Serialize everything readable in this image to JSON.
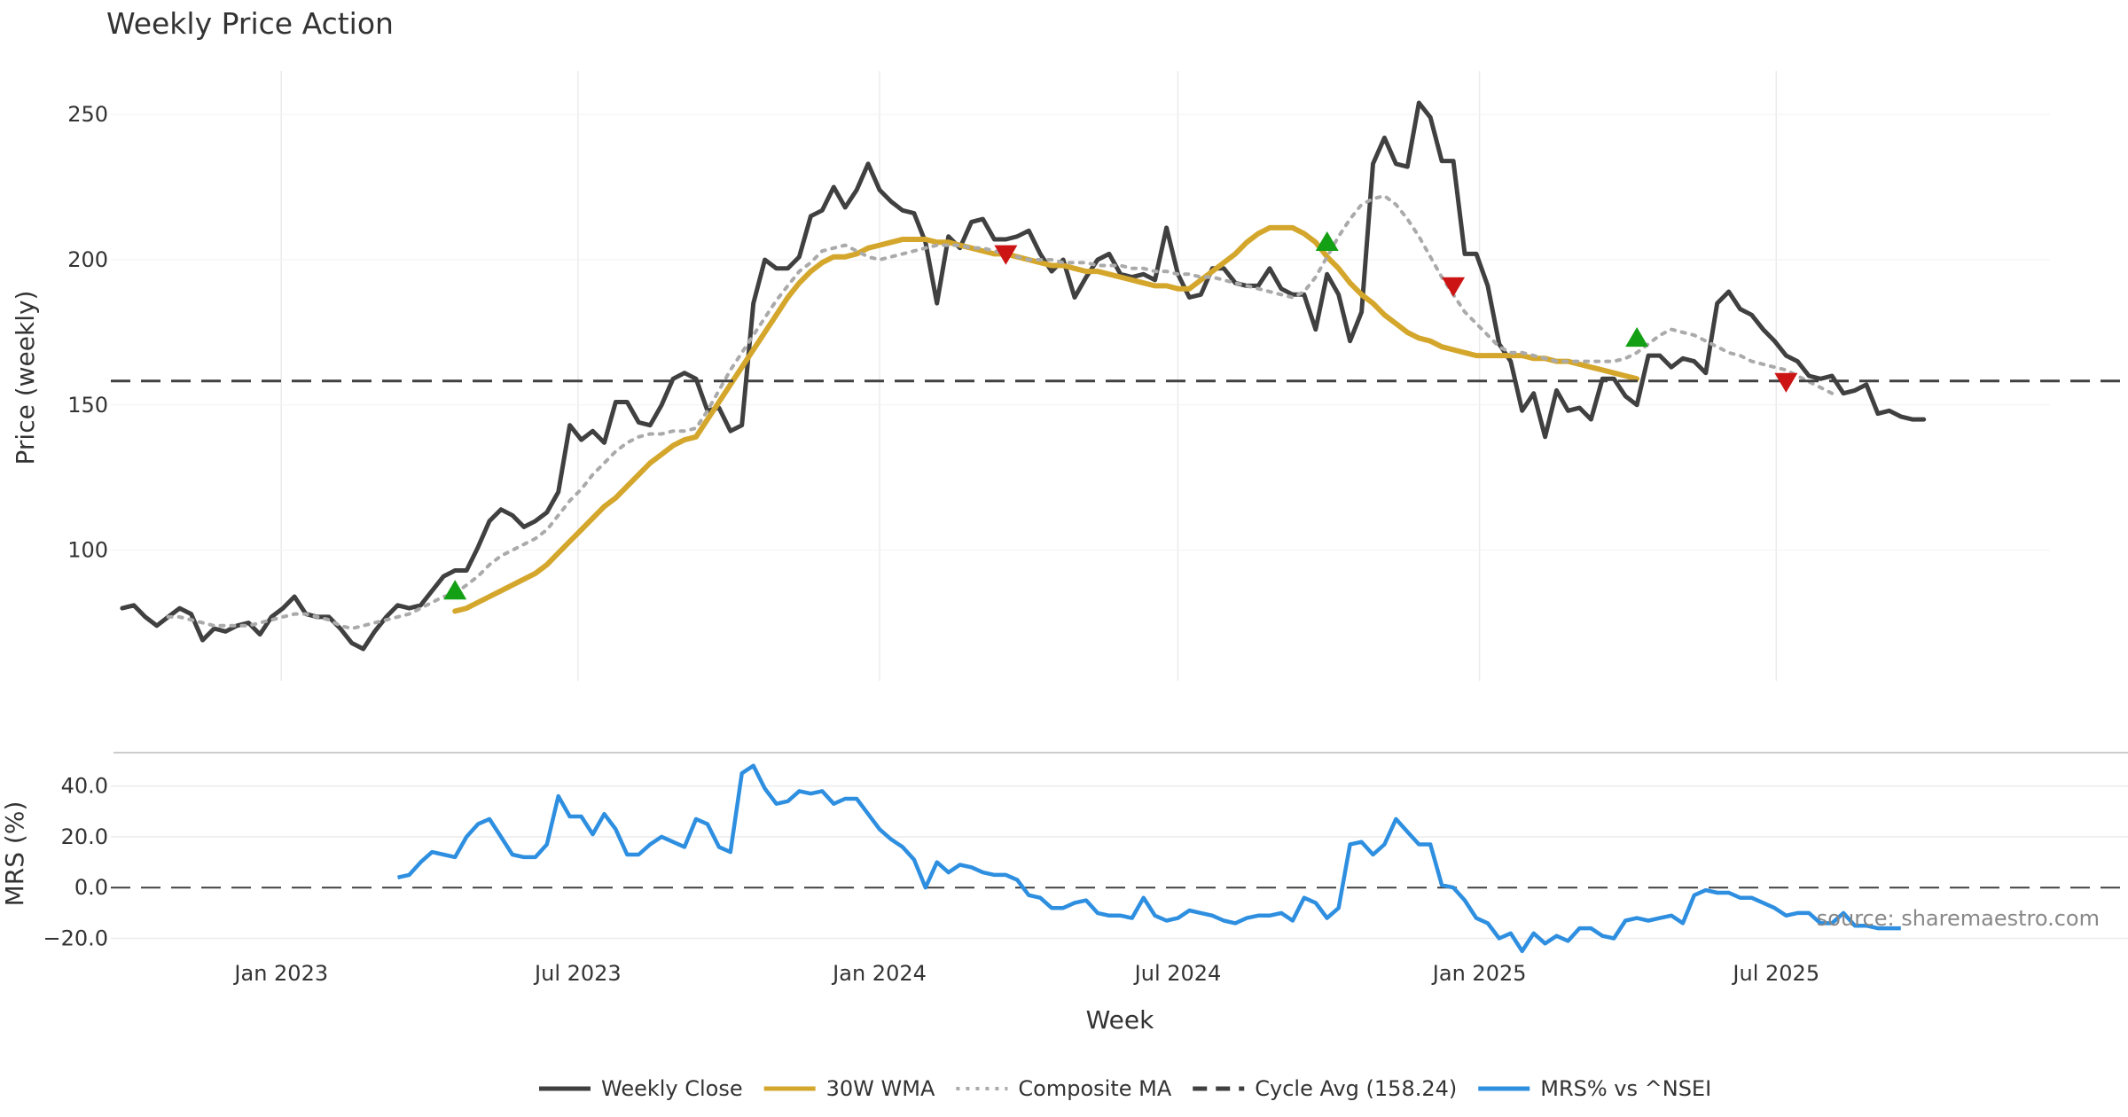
{
  "chart_data": {
    "type": "line",
    "title": "Weekly Price Action",
    "xlabel": "Week",
    "xlim": [
      "2022-09-19",
      "2025-12-15"
    ],
    "x_ticks": [
      {
        "date": "2023-01-01",
        "label": "Jan 2023"
      },
      {
        "date": "2023-07-01",
        "label": "Jul 2023"
      },
      {
        "date": "2024-01-01",
        "label": "Jan 2024"
      },
      {
        "date": "2024-07-01",
        "label": "Jul 2024"
      },
      {
        "date": "2025-01-01",
        "label": "Jan 2025"
      },
      {
        "date": "2025-07-01",
        "label": "Jul 2025"
      }
    ],
    "x_start": "2022-09-26",
    "weeks_per_point": 1,
    "price_panel": {
      "ylabel": "Price (weekly)",
      "ylim": [
        55,
        265
      ],
      "yticks": [
        100,
        150,
        200,
        250
      ],
      "ytick_labels": [
        "100",
        "150",
        "200",
        "250"
      ],
      "cycle_avg": 158.24,
      "series": [
        {
          "name": "Weekly Close",
          "color": "#404040",
          "style": "solid",
          "start": 0,
          "values": [
            80,
            81,
            77,
            74,
            77,
            80,
            78,
            69,
            73,
            72,
            74,
            75,
            71,
            77,
            80,
            84,
            78,
            77,
            77,
            73,
            68,
            66,
            72,
            77,
            81,
            80,
            81,
            86,
            91,
            93,
            93,
            101,
            110,
            114,
            112,
            108,
            110,
            113,
            120,
            143,
            138,
            141,
            137,
            151,
            151,
            144,
            143,
            150,
            159,
            161,
            159,
            148,
            149,
            141,
            143,
            185,
            200,
            197,
            197,
            201,
            215,
            217,
            225,
            218,
            224,
            233,
            224,
            220,
            217,
            216,
            206,
            185,
            208,
            204,
            213,
            214,
            207,
            207,
            208,
            210,
            202,
            196,
            200,
            187,
            194,
            200,
            202,
            195,
            194,
            195,
            193,
            211,
            195,
            187,
            188,
            197,
            197,
            192,
            191,
            191,
            197,
            190,
            188,
            188,
            176,
            195,
            188,
            172,
            182,
            233,
            242,
            233,
            232,
            254,
            249,
            234,
            234,
            202,
            202,
            191,
            171,
            165,
            148,
            154,
            139,
            155,
            148,
            149,
            145,
            159,
            159,
            153,
            150,
            167,
            167,
            163,
            166,
            165,
            161,
            185,
            189,
            183,
            181,
            176,
            172,
            167,
            165,
            160,
            159,
            160,
            154,
            155,
            157,
            147,
            148,
            146,
            145,
            145
          ]
        },
        {
          "name": "30W WMA",
          "color": "#D4A72C",
          "style": "solid",
          "start": 29,
          "values": [
            79,
            80,
            82,
            84,
            86,
            88,
            90,
            92,
            95,
            99,
            103,
            107,
            111,
            115,
            118,
            122,
            126,
            130,
            133,
            136,
            138,
            139,
            145,
            151,
            157,
            163,
            169,
            175,
            181,
            187,
            192,
            196,
            199,
            201,
            201,
            202,
            204,
            205,
            206,
            207,
            207,
            207,
            206,
            206,
            205,
            204,
            203,
            202,
            202,
            201,
            200,
            199,
            198,
            198,
            197,
            196,
            196,
            195,
            194,
            193,
            192,
            191,
            191,
            190,
            190,
            193,
            196,
            199,
            202,
            206,
            209,
            211,
            211,
            211,
            209,
            206,
            201,
            197,
            192,
            188,
            185,
            181,
            178,
            175,
            173,
            172,
            170,
            169,
            168,
            167,
            167,
            167,
            167,
            167,
            166,
            166,
            165,
            165,
            164,
            163,
            162,
            161,
            160,
            159
          ]
        },
        {
          "name": "Composite MA",
          "color": "#AAAAAA",
          "style": "dotted",
          "start": 4,
          "values": [
            77,
            77,
            76,
            75,
            74,
            74,
            74,
            74,
            75,
            76,
            77,
            78,
            78,
            77,
            76,
            74,
            73,
            74,
            75,
            76,
            77,
            78,
            80,
            82,
            84,
            85,
            88,
            91,
            95,
            98,
            100,
            102,
            104,
            107,
            112,
            117,
            121,
            126,
            130,
            134,
            137,
            139,
            140,
            140,
            141,
            141,
            142,
            148,
            155,
            162,
            168,
            174,
            180,
            186,
            191,
            196,
            199,
            203,
            204,
            205,
            203,
            201,
            200,
            201,
            202,
            203,
            204,
            205,
            205,
            205,
            204,
            204,
            203,
            202,
            201,
            200,
            200,
            200,
            199,
            199,
            199,
            198,
            198,
            198,
            197,
            197,
            196,
            196,
            195,
            195,
            194,
            194,
            193,
            192,
            191,
            190,
            189,
            188,
            187,
            189,
            194,
            201,
            208,
            214,
            219,
            221,
            222,
            219,
            214,
            208,
            201,
            194,
            188,
            182,
            178,
            174,
            170,
            168,
            168,
            167,
            166,
            165,
            165,
            165,
            165,
            165,
            165,
            166,
            168,
            171,
            174,
            176,
            175,
            174,
            172,
            170,
            168,
            167,
            165,
            164,
            163,
            162,
            160,
            158,
            156,
            154
          ]
        },
        {
          "name": "Cycle Avg (158.24)",
          "color": "#404040",
          "style": "dashed"
        }
      ],
      "signals": [
        {
          "type": "buy",
          "index": 29,
          "value": 86
        },
        {
          "type": "sell",
          "index": 77,
          "value": 202
        },
        {
          "type": "buy",
          "index": 105,
          "value": 206
        },
        {
          "type": "sell",
          "index": 116,
          "value": 191
        },
        {
          "type": "buy",
          "index": 132,
          "value": 173
        },
        {
          "type": "sell",
          "index": 145,
          "value": 158
        }
      ]
    },
    "mrs_panel": {
      "ylabel": "MRS (%)",
      "ylim": [
        -24,
        50
      ],
      "yticks": [
        -20,
        0,
        20,
        40
      ],
      "ytick_labels": [
        "−20.0",
        "0.0",
        "20.0",
        "40.0"
      ],
      "series": [
        {
          "name": "MRS% vs ^NSEI",
          "color": "#2E8FE0",
          "style": "solid",
          "start": 24,
          "values": [
            4,
            5,
            10,
            14,
            13,
            12,
            20,
            25,
            27,
            20,
            13,
            12,
            12,
            17,
            36,
            28,
            28,
            21,
            29,
            23,
            13,
            13,
            17,
            20,
            18,
            16,
            27,
            25,
            16,
            14,
            45,
            48,
            39,
            33,
            34,
            38,
            37,
            38,
            33,
            35,
            35,
            29,
            23,
            19,
            16,
            11,
            0,
            10,
            6,
            9,
            8,
            6,
            5,
            5,
            3,
            -3,
            -4,
            -8,
            -8,
            -6,
            -5,
            -10,
            -11,
            -11,
            -12,
            -4,
            -11,
            -13,
            -12,
            -9,
            -10,
            -11,
            -13,
            -14,
            -12,
            -11,
            -11,
            -10,
            -13,
            -4,
            -6,
            -12,
            -8,
            17,
            18,
            13,
            17,
            27,
            22,
            17,
            17,
            1,
            0,
            -5,
            -12,
            -14,
            -20,
            -18,
            -25,
            -18,
            -22,
            -19,
            -21,
            -16,
            -16,
            -19,
            -20,
            -13,
            -12,
            -13,
            -12,
            -11,
            -14,
            -3,
            -1,
            -2,
            -2,
            -4,
            -4,
            -6,
            -8,
            -11,
            -10,
            -10,
            -14,
            -14,
            -10,
            -15,
            -15,
            -16,
            -16,
            -16
          ]
        }
      ]
    },
    "legend": [
      "Weekly Close",
      "30W WMA",
      "Composite MA",
      "Cycle Avg (158.24)",
      "MRS% vs ^NSEI"
    ],
    "legend_position": "bottom-center",
    "annotation": "source: sharemaestro.com"
  }
}
